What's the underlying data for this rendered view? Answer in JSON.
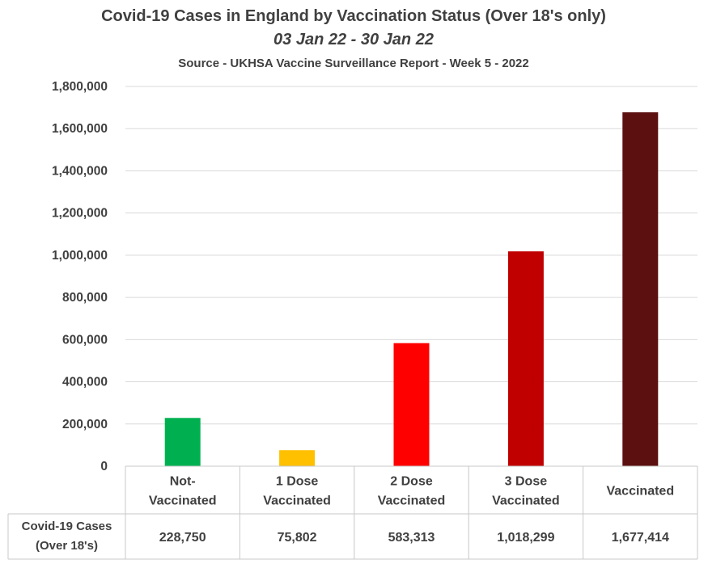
{
  "chart_data": {
    "type": "bar",
    "title": "Covid-19 Cases in England by Vaccination Status (Over 18's only)",
    "subtitle": "03 Jan 22 - 30 Jan 22",
    "source": "Source - UKHSA Vaccine Surveillance Report - Week 5 - 2022",
    "categories": [
      [
        "Not-",
        "Vaccinated"
      ],
      [
        "1 Dose",
        "Vaccinated"
      ],
      [
        "2 Dose",
        "Vaccinated"
      ],
      [
        "3 Dose",
        "Vaccinated"
      ],
      [
        "Vaccinated"
      ]
    ],
    "series": [
      {
        "name_lines": [
          "Covid-19 Cases",
          "(Over 18's)"
        ],
        "values": [
          228750,
          75802,
          583313,
          1018299,
          1677414
        ],
        "value_labels": [
          "228,750",
          "75,802",
          "583,313",
          "1,018,299",
          "1,677,414"
        ],
        "colors": [
          "#00b050",
          "#ffc000",
          "#ff0000",
          "#c00000",
          "#5c1010"
        ]
      }
    ],
    "ylim": [
      0,
      1800000
    ],
    "yticks": [
      0,
      200000,
      400000,
      600000,
      800000,
      1000000,
      1200000,
      1400000,
      1600000,
      1800000
    ],
    "ytick_labels": [
      "0",
      "200,000",
      "400,000",
      "600,000",
      "800,000",
      "1,000,000",
      "1,200,000",
      "1,400,000",
      "1,600,000",
      "1,800,000"
    ],
    "grid": true,
    "data_table": true
  }
}
